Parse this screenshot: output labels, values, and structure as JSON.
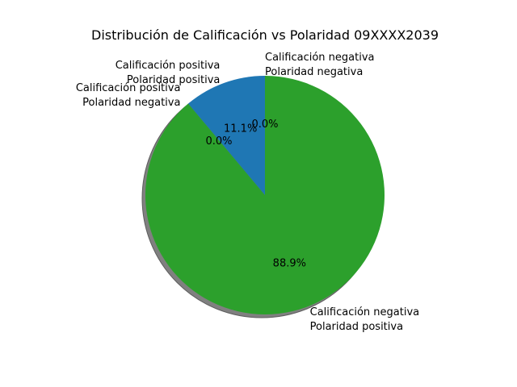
{
  "chart_data": {
    "type": "pie",
    "title": "Distribución de Calificación vs Polaridad 09XXXX2039",
    "shadow": true,
    "start_angle_deg": 90,
    "direction": "counterclockwise",
    "slices": [
      {
        "label": [
          "Calificación negativa",
          "Polaridad negativa"
        ],
        "value": 0.0,
        "pct_label": "0.0%",
        "color": "#d62728"
      },
      {
        "label": [
          "Calificación positiva",
          "Polaridad positiva"
        ],
        "value": 11.1,
        "pct_label": "11.1%",
        "color": "#1f77b4"
      },
      {
        "label": [
          "Calificación positiva",
          "Polaridad negativa"
        ],
        "value": 0.0,
        "pct_label": "0.0%",
        "color": "#ff7f0e"
      },
      {
        "label": [
          "Calificación negativa",
          "Polaridad positiva"
        ],
        "value": 88.9,
        "pct_label": "88.9%",
        "color": "#2ca02c"
      }
    ]
  }
}
